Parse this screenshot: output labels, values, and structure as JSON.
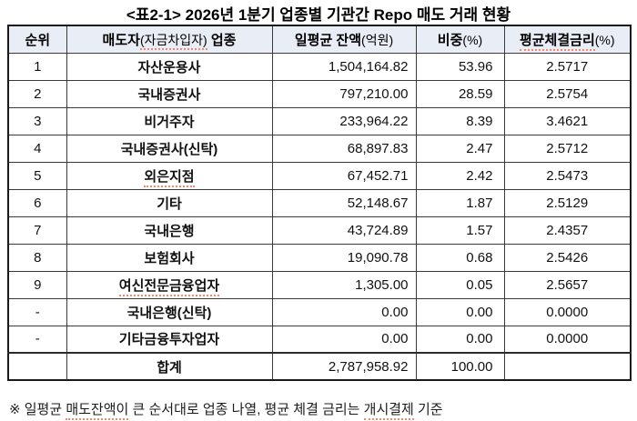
{
  "title": {
    "part1": "<표2-1> 2026년 1분기 업종별 ",
    "part2": "기관간",
    "part3": " Repo 매도 거래 현황"
  },
  "table": {
    "headers": {
      "rank": "순위",
      "seller_part1": "매도자",
      "seller_part2": "(자금차입자)",
      "seller_part3": " 업종",
      "balance_part1": "일평균 잔액",
      "balance_part2": "(억원)",
      "share_part1": "비중",
      "share_part2": "(%)",
      "rate_part1": "평균체결금리",
      "rate_part2": "(%)"
    },
    "rows": [
      {
        "rank": "1",
        "industry": "자산운용사",
        "balance": "1,504,164.82",
        "share": "53.96",
        "rate": "2.5717"
      },
      {
        "rank": "2",
        "industry": "국내증권사",
        "balance": "797,210.00",
        "share": "28.59",
        "rate": "2.5754"
      },
      {
        "rank": "3",
        "industry": "비거주자",
        "balance": "233,964.22",
        "share": "8.39",
        "rate": "3.4621"
      },
      {
        "rank": "4",
        "industry": "국내증권사(신탁)",
        "balance": "68,897.83",
        "share": "2.47",
        "rate": "2.5712"
      },
      {
        "rank": "5",
        "industry": "외은지점",
        "balance": "67,452.71",
        "share": "2.42",
        "rate": "2.5473",
        "underline": true
      },
      {
        "rank": "6",
        "industry": "기타",
        "balance": "52,148.67",
        "share": "1.87",
        "rate": "2.5129"
      },
      {
        "rank": "7",
        "industry": "국내은행",
        "balance": "43,724.89",
        "share": "1.57",
        "rate": "2.4357"
      },
      {
        "rank": "8",
        "industry": "보험회사",
        "balance": "19,090.78",
        "share": "0.68",
        "rate": "2.5426"
      },
      {
        "rank": "9",
        "industry": "여신전문금융업자",
        "balance": "1,305.00",
        "share": "0.05",
        "rate": "2.5657",
        "underline": true
      },
      {
        "rank": "-",
        "industry": "국내은행(신탁)",
        "balance": "0.00",
        "share": "0.00",
        "rate": "0.0000"
      },
      {
        "rank": "-",
        "industry": "기타금융투자업자",
        "balance": "0.00",
        "share": "0.00",
        "rate": "0.0000"
      },
      {
        "rank": "",
        "industry": "합계",
        "balance": "2,787,958.92",
        "share": "100.00",
        "rate": "",
        "total": true
      }
    ],
    "colors": {
      "header_bg": "#E9EDF6",
      "inner_border": "#3A3A3A",
      "outer_border": "#1A1A1A",
      "spellcheck_underline": "#F08A6E",
      "text": "#111111"
    }
  },
  "footnote": {
    "part1": "※ 일평균 ",
    "part2": "매도잔액이",
    "part3": " 큰 순서대로 업종 나열, 평균 체결 금리는 ",
    "part4": "개시결제",
    "part5": " 기준"
  }
}
